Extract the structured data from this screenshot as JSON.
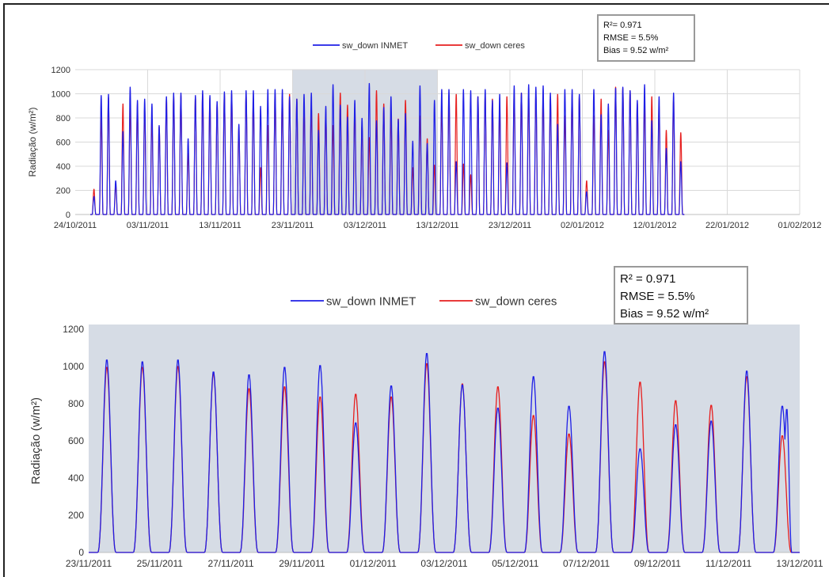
{
  "chart_data": [
    {
      "type": "line",
      "title": "",
      "xlabel": "",
      "ylabel": "Radiação (w/m²)",
      "ylim": [
        0,
        1200
      ],
      "yticks": [
        "0",
        "200",
        "400",
        "600",
        "800",
        "1000",
        "1200"
      ],
      "xticks": [
        "24/10/2011",
        "03/11/2011",
        "13/11/2011",
        "23/11/2011",
        "03/12/2011",
        "13/12/2011",
        "23/12/2011",
        "02/01/2012",
        "12/01/2012",
        "22/01/2012",
        "01/02/2012"
      ],
      "x_start_date": "2011-10-24",
      "x_end_date": "2012-02-01",
      "highlight_range": [
        "2011-11-23",
        "2011-12-13"
      ],
      "grid": true,
      "legend_position": "top",
      "series": [
        {
          "name": "sw_down INMET",
          "color": "#1f1fe6",
          "daily_peaks": [
            150,
            990,
            1000,
            280,
            690,
            1060,
            950,
            960,
            920,
            740,
            980,
            1010,
            1010,
            630,
            990,
            1030,
            990,
            940,
            1020,
            1030,
            750,
            1030,
            1030,
            900,
            1040,
            1040,
            1040,
            980,
            960,
            1000,
            1010,
            700,
            900,
            1080,
            910,
            810,
            950,
            800,
            1090,
            780,
            890,
            980,
            790,
            840,
            610,
            1070,
            590,
            950,
            1040,
            1040,
            440,
            1040,
            1030,
            980,
            1040,
            950,
            1000,
            430,
            1070,
            1010,
            1080,
            1060,
            1070,
            1010,
            750,
            1040,
            1040,
            1000,
            190,
            1040,
            830,
            920,
            1050,
            1060,
            1030,
            950,
            1080,
            780,
            980,
            550,
            1010,
            440
          ]
        },
        {
          "name": "sw_down ceres",
          "color": "#e61f1f",
          "daily_peaks": [
            210,
            810,
            970,
            240,
            920,
            920,
            910,
            880,
            800,
            730,
            960,
            980,
            990,
            510,
            980,
            1000,
            970,
            920,
            1000,
            1000,
            720,
            990,
            960,
            390,
            740,
            1000,
            990,
            1000,
            960,
            880,
            890,
            840,
            850,
            740,
            1010,
            910,
            890,
            740,
            640,
            1030,
            920,
            820,
            795,
            950,
            390,
            820,
            630,
            410,
            900,
            990,
            1000,
            420,
            330,
            980,
            990,
            960,
            900,
            980,
            1000,
            1010,
            990,
            990,
            980,
            960,
            1000,
            820,
            1000,
            990,
            280,
            820,
            960,
            700,
            1060,
            1050,
            1030,
            920,
            940,
            980,
            900,
            700,
            960,
            680
          ]
        }
      ]
    },
    {
      "type": "line",
      "title": "",
      "xlabel": "",
      "ylabel": "Radiação (w/m²)",
      "ylim": [
        0,
        1200
      ],
      "yticks": [
        "0",
        "200",
        "400",
        "600",
        "800",
        "1000",
        "1200"
      ],
      "xticks": [
        "23/11/2011",
        "25/11/2011",
        "27/11/2011",
        "29/11/2011",
        "01/12/2011",
        "03/12/2011",
        "05/12/2011",
        "07/12/2011",
        "09/12/2011",
        "11/12/2011",
        "13/12/2011"
      ],
      "x_start_date": "2011-11-23",
      "x_end_date": "2011-12-13",
      "grid": false,
      "legend_position": "top",
      "series": [
        {
          "name": "sw_down INMET",
          "color": "#1f1fe6",
          "daily_peaks": [
            1040,
            1030,
            1040,
            975,
            960,
            1000,
            1010,
            700,
            900,
            1075,
            905,
            780,
            950,
            790,
            1085,
            560,
            690,
            710,
            980,
            790
          ],
          "secondary_peak": 780
        },
        {
          "name": "sw_down ceres",
          "color": "#e61f1f",
          "daily_peaks": [
            1000,
            1000,
            1005,
            965,
            885,
            895,
            840,
            855,
            840,
            1020,
            910,
            895,
            740,
            640,
            1030,
            920,
            820,
            795,
            950,
            630
          ]
        }
      ]
    }
  ],
  "stats_top": {
    "r2_label": "R²= 0.971",
    "rmse_label": "RMSE = 5.5%",
    "bias_label": "Bias = 9.52 w/m²"
  },
  "stats_bottom": {
    "r2_label": "R² = 0.971",
    "rmse_label": "RMSE = 5.5%",
    "bias_label": "Bias = 9.52 w/m²"
  }
}
